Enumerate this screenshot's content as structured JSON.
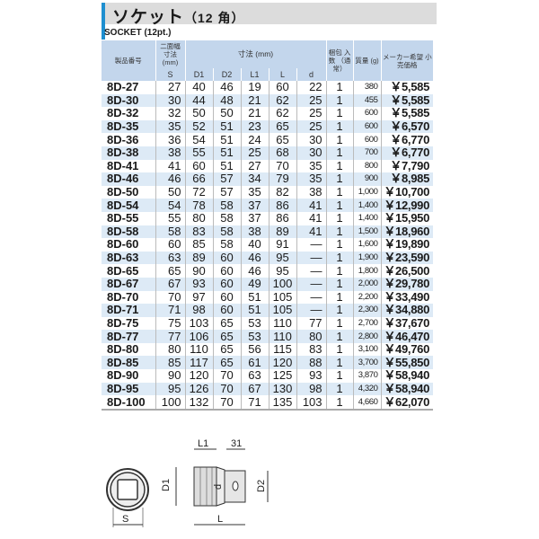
{
  "title": "ソケット",
  "title_suffix": "（12 角）",
  "subtitle": "SOCKET (12pt.)",
  "accent_color": "#1e8fd0",
  "headers": {
    "model": "製品番号",
    "width_across": "二面幅 寸法 (mm)",
    "dimensions": "寸法 (mm)",
    "pack_qty": "梱包 入数 （通常）",
    "weight": "質量 (g)",
    "price": "メーカー希望 小売価格",
    "sub": [
      "S",
      "D1",
      "D2",
      "L1",
      "L",
      "d"
    ]
  },
  "rows": [
    [
      "8D-27",
      "27",
      "40",
      "46",
      "19",
      "60",
      "22",
      "1",
      "380",
      "￥5,585"
    ],
    [
      "8D-30",
      "30",
      "44",
      "48",
      "21",
      "62",
      "25",
      "1",
      "455",
      "￥5,585"
    ],
    [
      "8D-32",
      "32",
      "50",
      "50",
      "21",
      "62",
      "25",
      "1",
      "600",
      "￥5,585"
    ],
    [
      "8D-35",
      "35",
      "52",
      "51",
      "23",
      "65",
      "25",
      "1",
      "600",
      "￥6,570"
    ],
    [
      "8D-36",
      "36",
      "54",
      "51",
      "24",
      "65",
      "30",
      "1",
      "600",
      "￥6,770"
    ],
    [
      "8D-38",
      "38",
      "55",
      "51",
      "25",
      "68",
      "30",
      "1",
      "700",
      "￥6,770"
    ],
    [
      "8D-41",
      "41",
      "60",
      "51",
      "27",
      "70",
      "35",
      "1",
      "800",
      "￥7,790"
    ],
    [
      "8D-46",
      "46",
      "66",
      "57",
      "34",
      "79",
      "35",
      "1",
      "900",
      "￥8,985"
    ],
    [
      "8D-50",
      "50",
      "72",
      "57",
      "35",
      "82",
      "38",
      "1",
      "1,000",
      "￥10,700"
    ],
    [
      "8D-54",
      "54",
      "78",
      "58",
      "37",
      "86",
      "41",
      "1",
      "1,400",
      "￥12,990"
    ],
    [
      "8D-55",
      "55",
      "80",
      "58",
      "37",
      "86",
      "41",
      "1",
      "1,400",
      "￥15,950"
    ],
    [
      "8D-58",
      "58",
      "83",
      "58",
      "38",
      "89",
      "41",
      "1",
      "1,500",
      "￥18,960"
    ],
    [
      "8D-60",
      "60",
      "85",
      "58",
      "40",
      "91",
      "—",
      "1",
      "1,600",
      "￥19,890"
    ],
    [
      "8D-63",
      "63",
      "89",
      "60",
      "46",
      "95",
      "—",
      "1",
      "1,900",
      "￥23,590"
    ],
    [
      "8D-65",
      "65",
      "90",
      "60",
      "46",
      "95",
      "—",
      "1",
      "1,800",
      "￥26,500"
    ],
    [
      "8D-67",
      "67",
      "93",
      "60",
      "49",
      "100",
      "—",
      "1",
      "2,000",
      "￥29,780"
    ],
    [
      "8D-70",
      "70",
      "97",
      "60",
      "51",
      "105",
      "—",
      "1",
      "2,200",
      "￥33,490"
    ],
    [
      "8D-71",
      "71",
      "98",
      "60",
      "51",
      "105",
      "—",
      "1",
      "2,300",
      "￥34,880"
    ],
    [
      "8D-75",
      "75",
      "103",
      "65",
      "53",
      "110",
      "77",
      "1",
      "2,700",
      "￥37,670"
    ],
    [
      "8D-77",
      "77",
      "106",
      "65",
      "53",
      "110",
      "80",
      "1",
      "2,800",
      "￥46,470"
    ],
    [
      "8D-80",
      "80",
      "110",
      "65",
      "56",
      "115",
      "83",
      "1",
      "3,100",
      "￥49,760"
    ],
    [
      "8D-85",
      "85",
      "117",
      "65",
      "61",
      "120",
      "88",
      "1",
      "3,700",
      "￥55,850"
    ],
    [
      "8D-90",
      "90",
      "120",
      "70",
      "63",
      "125",
      "93",
      "1",
      "3,870",
      "￥58,940"
    ],
    [
      "8D-95",
      "95",
      "126",
      "70",
      "67",
      "130",
      "98",
      "1",
      "4,320",
      "￥58,940"
    ],
    [
      "8D-100",
      "100",
      "132",
      "70",
      "71",
      "135",
      "103",
      "1",
      "4,660",
      "￥62,070"
    ]
  ],
  "diagram": {
    "S": "S",
    "D1": "D1",
    "D2": "D2",
    "L1": "L1",
    "L": "L",
    "d": "d",
    "drive": "31"
  }
}
